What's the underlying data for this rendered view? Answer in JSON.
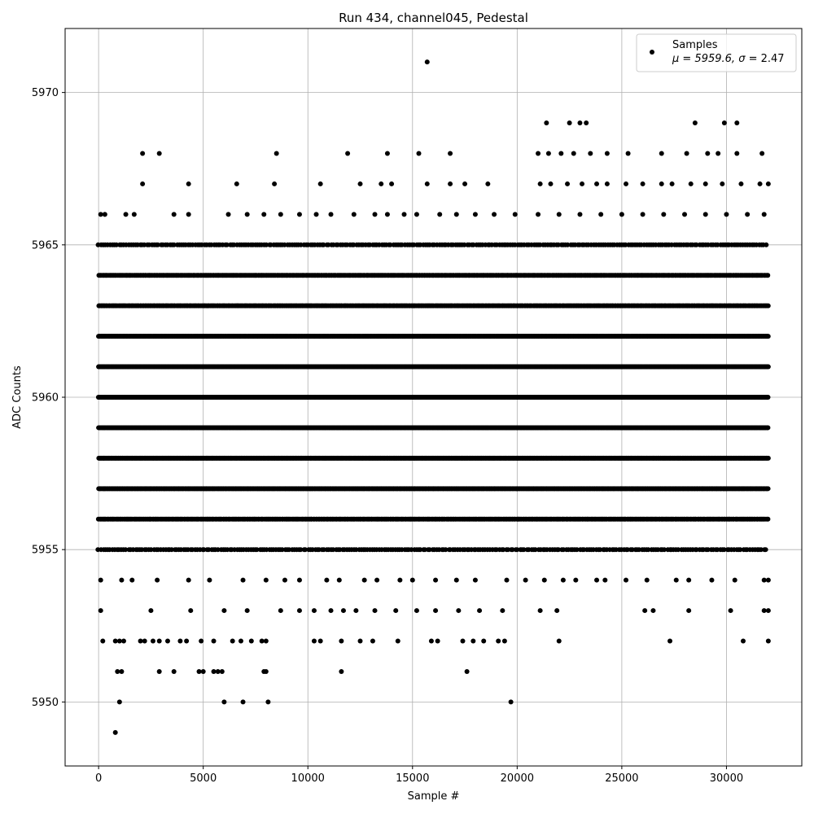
{
  "chart_data": {
    "type": "scatter",
    "title": "Run 434, channel045, Pedestal",
    "xlabel": "Sample #",
    "ylabel": "ADC Counts",
    "xlim": [
      -1600,
      33600
    ],
    "ylim": [
      5947.9,
      5972.1
    ],
    "x_ticks": [
      0,
      5000,
      10000,
      15000,
      20000,
      25000,
      30000
    ],
    "x_tick_labels": [
      "0",
      "5000",
      "10000",
      "15000",
      "20000",
      "25000",
      "30000"
    ],
    "y_ticks": [
      5950,
      5955,
      5960,
      5965,
      5970
    ],
    "y_tick_labels": [
      "5950",
      "5955",
      "5960",
      "5965",
      "5970"
    ],
    "grid": true,
    "legend_position": "top-right",
    "marker_color": "#000000",
    "series": [
      {
        "name": "Samples",
        "legend_label_prefix": "μ = 5959.6, ",
        "legend_label_sigma": "σ",
        "legend_label_suffix": " = 2.47",
        "x_range": [
          0,
          32000
        ],
        "value_levels": [
          5949,
          5950,
          5951,
          5952,
          5953,
          5954,
          5955,
          5956,
          5957,
          5958,
          5959,
          5960,
          5961,
          5962,
          5963,
          5964,
          5965,
          5966,
          5967,
          5968,
          5969,
          5971
        ],
        "dense_levels": [
          5955,
          5956,
          5957,
          5958,
          5959,
          5960,
          5961,
          5962,
          5963,
          5964,
          5965
        ],
        "sparse_points": [
          [
            800,
            5949
          ],
          [
            1000,
            5950
          ],
          [
            6000,
            5950
          ],
          [
            6900,
            5950
          ],
          [
            8100,
            5950
          ],
          [
            19700,
            5950
          ],
          [
            900,
            5951
          ],
          [
            1100,
            5951
          ],
          [
            2900,
            5951
          ],
          [
            3600,
            5951
          ],
          [
            4800,
            5951
          ],
          [
            5000,
            5951
          ],
          [
            5500,
            5951
          ],
          [
            5700,
            5951
          ],
          [
            5900,
            5951
          ],
          [
            7900,
            5951
          ],
          [
            8000,
            5951
          ],
          [
            11600,
            5951
          ],
          [
            17600,
            5951
          ],
          [
            200,
            5952
          ],
          [
            800,
            5952
          ],
          [
            1000,
            5952
          ],
          [
            1200,
            5952
          ],
          [
            2000,
            5952
          ],
          [
            2200,
            5952
          ],
          [
            2600,
            5952
          ],
          [
            2900,
            5952
          ],
          [
            3300,
            5952
          ],
          [
            3900,
            5952
          ],
          [
            4200,
            5952
          ],
          [
            4900,
            5952
          ],
          [
            5500,
            5952
          ],
          [
            6400,
            5952
          ],
          [
            6800,
            5952
          ],
          [
            7300,
            5952
          ],
          [
            7800,
            5952
          ],
          [
            8000,
            5952
          ],
          [
            10300,
            5952
          ],
          [
            10600,
            5952
          ],
          [
            11600,
            5952
          ],
          [
            12500,
            5952
          ],
          [
            13100,
            5952
          ],
          [
            14300,
            5952
          ],
          [
            15900,
            5952
          ],
          [
            16200,
            5952
          ],
          [
            17400,
            5952
          ],
          [
            17900,
            5952
          ],
          [
            18400,
            5952
          ],
          [
            19100,
            5952
          ],
          [
            19400,
            5952
          ],
          [
            22000,
            5952
          ],
          [
            27300,
            5952
          ],
          [
            30800,
            5952
          ],
          [
            32000,
            5952
          ],
          [
            100,
            5953
          ],
          [
            2500,
            5953
          ],
          [
            4400,
            5953
          ],
          [
            6000,
            5953
          ],
          [
            7100,
            5953
          ],
          [
            8700,
            5953
          ],
          [
            9600,
            5953
          ],
          [
            10300,
            5953
          ],
          [
            11100,
            5953
          ],
          [
            11700,
            5953
          ],
          [
            12300,
            5953
          ],
          [
            13200,
            5953
          ],
          [
            14200,
            5953
          ],
          [
            15200,
            5953
          ],
          [
            16100,
            5953
          ],
          [
            17200,
            5953
          ],
          [
            18200,
            5953
          ],
          [
            19300,
            5953
          ],
          [
            21100,
            5953
          ],
          [
            21900,
            5953
          ],
          [
            26100,
            5953
          ],
          [
            26500,
            5953
          ],
          [
            28200,
            5953
          ],
          [
            30200,
            5953
          ],
          [
            31800,
            5953
          ],
          [
            32000,
            5953
          ],
          [
            100,
            5954
          ],
          [
            1100,
            5954
          ],
          [
            1600,
            5954
          ],
          [
            2800,
            5954
          ],
          [
            4300,
            5954
          ],
          [
            5300,
            5954
          ],
          [
            6900,
            5954
          ],
          [
            8000,
            5954
          ],
          [
            8900,
            5954
          ],
          [
            9600,
            5954
          ],
          [
            10900,
            5954
          ],
          [
            11500,
            5954
          ],
          [
            12700,
            5954
          ],
          [
            13300,
            5954
          ],
          [
            14400,
            5954
          ],
          [
            15000,
            5954
          ],
          [
            16100,
            5954
          ],
          [
            17100,
            5954
          ],
          [
            18000,
            5954
          ],
          [
            19500,
            5954
          ],
          [
            20400,
            5954
          ],
          [
            21300,
            5954
          ],
          [
            22200,
            5954
          ],
          [
            22800,
            5954
          ],
          [
            23800,
            5954
          ],
          [
            24200,
            5954
          ],
          [
            25200,
            5954
          ],
          [
            26200,
            5954
          ],
          [
            27600,
            5954
          ],
          [
            28200,
            5954
          ],
          [
            29300,
            5954
          ],
          [
            30400,
            5954
          ],
          [
            31800,
            5954
          ],
          [
            32000,
            5954
          ],
          [
            100,
            5966
          ],
          [
            300,
            5966
          ],
          [
            1300,
            5966
          ],
          [
            1700,
            5966
          ],
          [
            3600,
            5966
          ],
          [
            4300,
            5966
          ],
          [
            6200,
            5966
          ],
          [
            7100,
            5966
          ],
          [
            7900,
            5966
          ],
          [
            8700,
            5966
          ],
          [
            9600,
            5966
          ],
          [
            10400,
            5966
          ],
          [
            11100,
            5966
          ],
          [
            12200,
            5966
          ],
          [
            13200,
            5966
          ],
          [
            13800,
            5966
          ],
          [
            14600,
            5966
          ],
          [
            15200,
            5966
          ],
          [
            16300,
            5966
          ],
          [
            17100,
            5966
          ],
          [
            18000,
            5966
          ],
          [
            18900,
            5966
          ],
          [
            19900,
            5966
          ],
          [
            21000,
            5966
          ],
          [
            22000,
            5966
          ],
          [
            23000,
            5966
          ],
          [
            24000,
            5966
          ],
          [
            25000,
            5966
          ],
          [
            26000,
            5966
          ],
          [
            27000,
            5966
          ],
          [
            28000,
            5966
          ],
          [
            29000,
            5966
          ],
          [
            30000,
            5966
          ],
          [
            31000,
            5966
          ],
          [
            31800,
            5966
          ],
          [
            2100,
            5967
          ],
          [
            4300,
            5967
          ],
          [
            6600,
            5967
          ],
          [
            8400,
            5967
          ],
          [
            10600,
            5967
          ],
          [
            12500,
            5967
          ],
          [
            13500,
            5967
          ],
          [
            14000,
            5967
          ],
          [
            15700,
            5967
          ],
          [
            16800,
            5967
          ],
          [
            17500,
            5967
          ],
          [
            18600,
            5967
          ],
          [
            21100,
            5967
          ],
          [
            21600,
            5967
          ],
          [
            22400,
            5967
          ],
          [
            23100,
            5967
          ],
          [
            23800,
            5967
          ],
          [
            24300,
            5967
          ],
          [
            25200,
            5967
          ],
          [
            26000,
            5967
          ],
          [
            26900,
            5967
          ],
          [
            27400,
            5967
          ],
          [
            28300,
            5967
          ],
          [
            29000,
            5967
          ],
          [
            29800,
            5967
          ],
          [
            30700,
            5967
          ],
          [
            31600,
            5967
          ],
          [
            32000,
            5967
          ],
          [
            2100,
            5968
          ],
          [
            2900,
            5968
          ],
          [
            8500,
            5968
          ],
          [
            11900,
            5968
          ],
          [
            13800,
            5968
          ],
          [
            15300,
            5968
          ],
          [
            16800,
            5968
          ],
          [
            21000,
            5968
          ],
          [
            21500,
            5968
          ],
          [
            22100,
            5968
          ],
          [
            22700,
            5968
          ],
          [
            23500,
            5968
          ],
          [
            24300,
            5968
          ],
          [
            25300,
            5968
          ],
          [
            26900,
            5968
          ],
          [
            28100,
            5968
          ],
          [
            29100,
            5968
          ],
          [
            29600,
            5968
          ],
          [
            30500,
            5968
          ],
          [
            31700,
            5968
          ],
          [
            21400,
            5969
          ],
          [
            22500,
            5969
          ],
          [
            23000,
            5969
          ],
          [
            23300,
            5969
          ],
          [
            28500,
            5969
          ],
          [
            29900,
            5969
          ],
          [
            30500,
            5969
          ],
          [
            15700,
            5971
          ]
        ]
      }
    ]
  }
}
